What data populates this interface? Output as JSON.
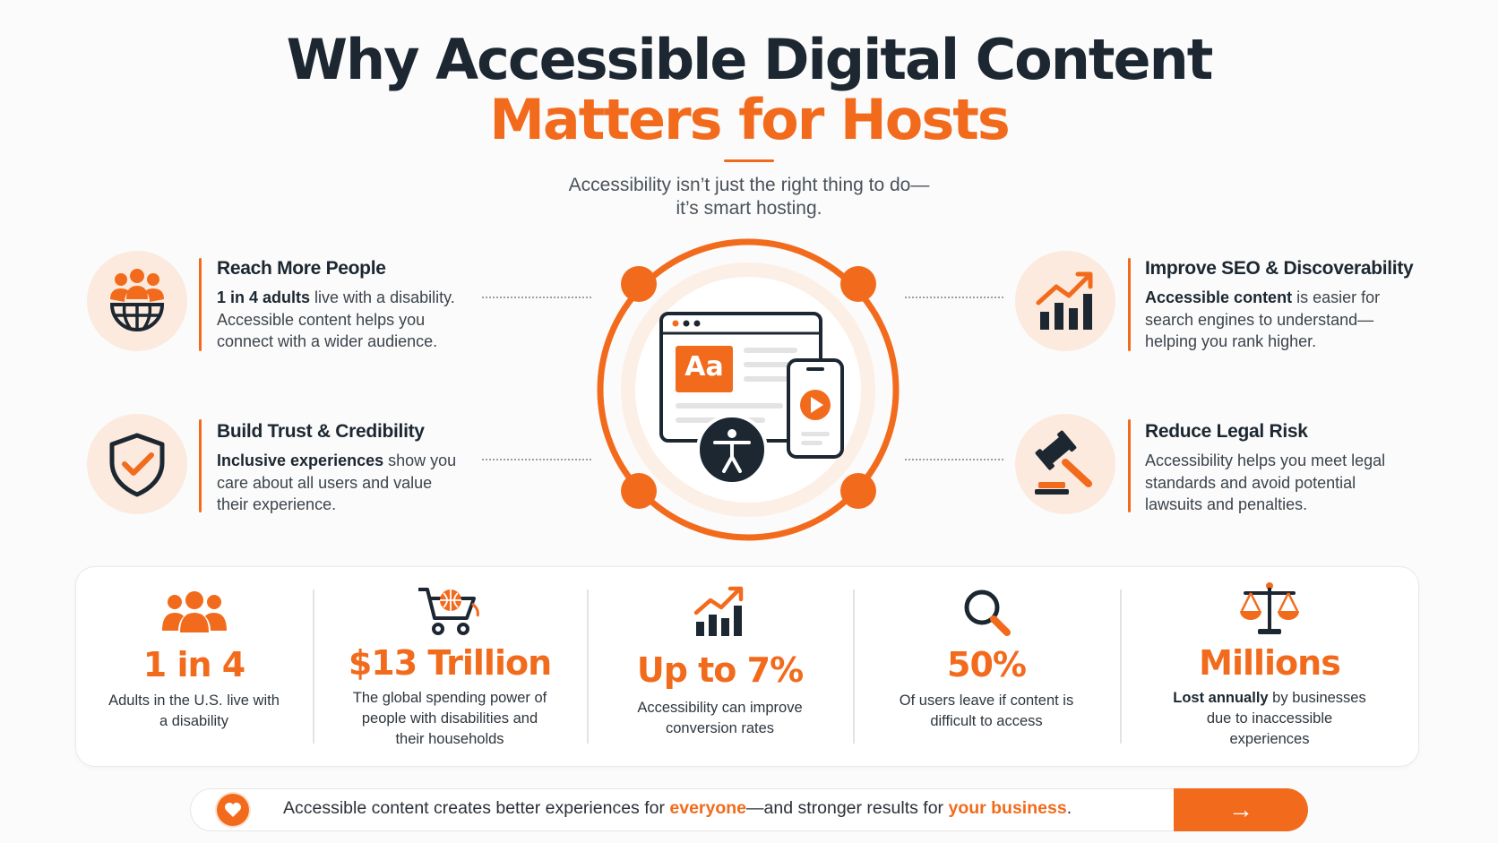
{
  "header": {
    "title_line1": "Why Accessible Digital Content",
    "title_line2": "Matters for Hosts",
    "subtitle_line1": "Accessibility isn’t just the right thing to do—",
    "subtitle_line2": "it’s smart hosting."
  },
  "benefits": [
    {
      "title": "Reach More People",
      "lines": [
        [
          "1 in 4 adults",
          " live with a disability."
        ],
        [
          "",
          "Accessible content helps you"
        ],
        [
          "",
          "connect with a wider audience."
        ]
      ],
      "icon": "people-globe-icon"
    },
    {
      "title": "Build Trust & Credibility",
      "lines": [
        [
          "Inclusive experiences",
          " show you"
        ],
        [
          "",
          "care about all users and value"
        ],
        [
          "",
          "their experience."
        ]
      ],
      "icon": "shield-check-icon"
    },
    {
      "title": "Improve SEO & Discoverability",
      "lines": [
        [
          "Accessible content",
          " is easier for"
        ],
        [
          "",
          "search engines to understand—"
        ],
        [
          "",
          "helping you rank higher."
        ]
      ],
      "icon": "growth-chart-icon"
    },
    {
      "title": "Reduce Legal Risk",
      "lines": [
        [
          "",
          "Accessibility helps you meet legal"
        ],
        [
          "",
          "standards and avoid potential"
        ],
        [
          "",
          "lawsuits and penalties."
        ]
      ],
      "icon": "gavel-icon"
    }
  ],
  "center": {
    "font_sample": "Aa",
    "icons": [
      "browser-window-icon",
      "phone-play-icon",
      "accessibility-person-icon"
    ]
  },
  "stats": [
    {
      "icon": "people-icon",
      "value": "1 in 4",
      "desc_bold": "",
      "desc": [
        "Adults in the U.S. live with",
        "a disability"
      ]
    },
    {
      "icon": "cart-globe-icon",
      "value": "$13 Trillion",
      "desc_bold": "",
      "desc": [
        "The global spending power of",
        "people with disabilities and",
        "their households"
      ]
    },
    {
      "icon": "growth-chart-icon",
      "value": "Up to 7%",
      "desc_bold": "",
      "desc": [
        "Accessibility can improve",
        "conversion rates"
      ]
    },
    {
      "icon": "magnifier-icon",
      "value": "50%",
      "desc_bold": "",
      "desc": [
        "Of users leave if content is",
        "difficult to access"
      ]
    },
    {
      "icon": "scales-icon",
      "value": "Millions",
      "desc_bold": "Lost annually",
      "desc": [
        " by businesses",
        "due to inaccessible",
        "experiences"
      ]
    }
  ],
  "banner": {
    "text_before": "Accessible content creates better experiences for ",
    "highlight1": "everyone",
    "text_middle": "—and stronger results for ",
    "highlight2": "your business",
    "text_after": ".",
    "arrow": "→"
  },
  "colors": {
    "accent": "#f26b1d",
    "dark": "#1c2731",
    "icon_bg": "#fbeadd"
  }
}
